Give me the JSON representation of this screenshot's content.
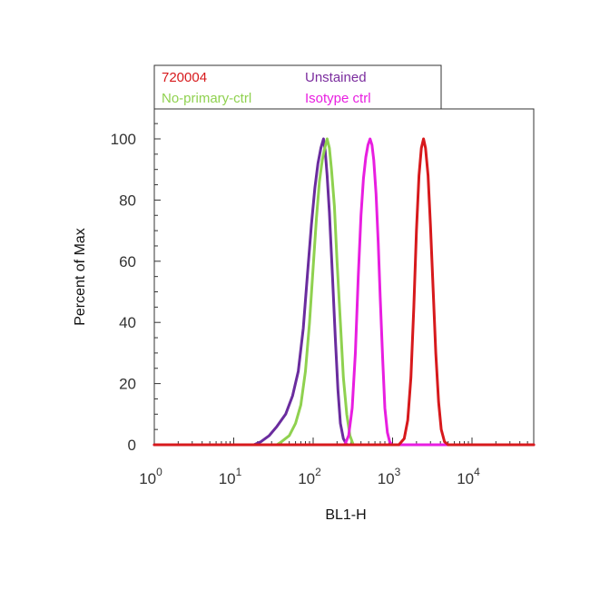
{
  "chart_data": {
    "type": "line",
    "title": "",
    "xlabel": "BL1-H",
    "ylabel": "Percent of Max",
    "x_scale": "log",
    "xlim": [
      1,
      60000
    ],
    "ylim": [
      0,
      110
    ],
    "y_ticks": [
      0,
      20,
      40,
      60,
      80,
      100
    ],
    "x_ticks": [
      {
        "value": 1,
        "base": "10",
        "exp": "0"
      },
      {
        "value": 10,
        "base": "10",
        "exp": "1"
      },
      {
        "value": 100,
        "base": "10",
        "exp": "2"
      },
      {
        "value": 1000,
        "base": "10",
        "exp": "3"
      },
      {
        "value": 10000,
        "base": "10",
        "exp": "4"
      }
    ],
    "grid": false,
    "legend_position": "top",
    "legend": [
      {
        "name": "720004",
        "color": "#d7191c"
      },
      {
        "name": "Unstained",
        "color": "#7b2d9e"
      },
      {
        "name": "No-primary-ctrl",
        "color": "#8fd14f"
      },
      {
        "name": "Isotype ctrl",
        "color": "#e81ee0"
      }
    ],
    "series": [
      {
        "name": "Unstained",
        "color": "#6a2c9e",
        "points": [
          [
            1,
            0
          ],
          [
            18,
            0
          ],
          [
            22,
            1
          ],
          [
            28,
            3
          ],
          [
            35,
            6
          ],
          [
            45,
            10
          ],
          [
            55,
            16
          ],
          [
            65,
            24
          ],
          [
            75,
            38
          ],
          [
            85,
            56
          ],
          [
            95,
            72
          ],
          [
            105,
            84
          ],
          [
            115,
            92
          ],
          [
            125,
            97
          ],
          [
            135,
            100
          ],
          [
            142,
            96
          ],
          [
            150,
            88
          ],
          [
            160,
            76
          ],
          [
            175,
            55
          ],
          [
            190,
            35
          ],
          [
            205,
            18
          ],
          [
            220,
            7
          ],
          [
            240,
            2
          ],
          [
            265,
            0
          ],
          [
            60000,
            0
          ]
        ]
      },
      {
        "name": "No-primary-ctrl",
        "color": "#8fd14f",
        "points": [
          [
            1,
            0
          ],
          [
            35,
            0
          ],
          [
            40,
            1
          ],
          [
            50,
            3
          ],
          [
            60,
            7
          ],
          [
            70,
            13
          ],
          [
            80,
            24
          ],
          [
            90,
            40
          ],
          [
            100,
            58
          ],
          [
            110,
            74
          ],
          [
            120,
            86
          ],
          [
            130,
            93
          ],
          [
            140,
            97
          ],
          [
            150,
            100
          ],
          [
            160,
            97
          ],
          [
            170,
            90
          ],
          [
            185,
            78
          ],
          [
            200,
            60
          ],
          [
            220,
            40
          ],
          [
            240,
            22
          ],
          [
            265,
            10
          ],
          [
            290,
            3
          ],
          [
            320,
            0
          ],
          [
            60000,
            0
          ]
        ]
      },
      {
        "name": "Isotype ctrl",
        "color": "#e81ee0",
        "points": [
          [
            1,
            0
          ],
          [
            250,
            0
          ],
          [
            280,
            3
          ],
          [
            310,
            12
          ],
          [
            340,
            30
          ],
          [
            370,
            55
          ],
          [
            400,
            75
          ],
          [
            430,
            87
          ],
          [
            460,
            94
          ],
          [
            490,
            98
          ],
          [
            520,
            100
          ],
          [
            550,
            98
          ],
          [
            580,
            93
          ],
          [
            620,
            82
          ],
          [
            660,
            66
          ],
          [
            700,
            48
          ],
          [
            750,
            28
          ],
          [
            800,
            12
          ],
          [
            860,
            4
          ],
          [
            920,
            1
          ],
          [
            980,
            0
          ],
          [
            60000,
            0
          ]
        ]
      },
      {
        "name": "720004",
        "color": "#d7191c",
        "points": [
          [
            1,
            0
          ],
          [
            1200,
            0
          ],
          [
            1400,
            2
          ],
          [
            1550,
            8
          ],
          [
            1700,
            22
          ],
          [
            1850,
            45
          ],
          [
            2000,
            70
          ],
          [
            2150,
            88
          ],
          [
            2300,
            97
          ],
          [
            2450,
            100
          ],
          [
            2600,
            97
          ],
          [
            2800,
            88
          ],
          [
            3000,
            72
          ],
          [
            3250,
            50
          ],
          [
            3500,
            30
          ],
          [
            3800,
            14
          ],
          [
            4100,
            5
          ],
          [
            4500,
            1
          ],
          [
            5000,
            0
          ],
          [
            60000,
            0
          ]
        ]
      }
    ]
  }
}
